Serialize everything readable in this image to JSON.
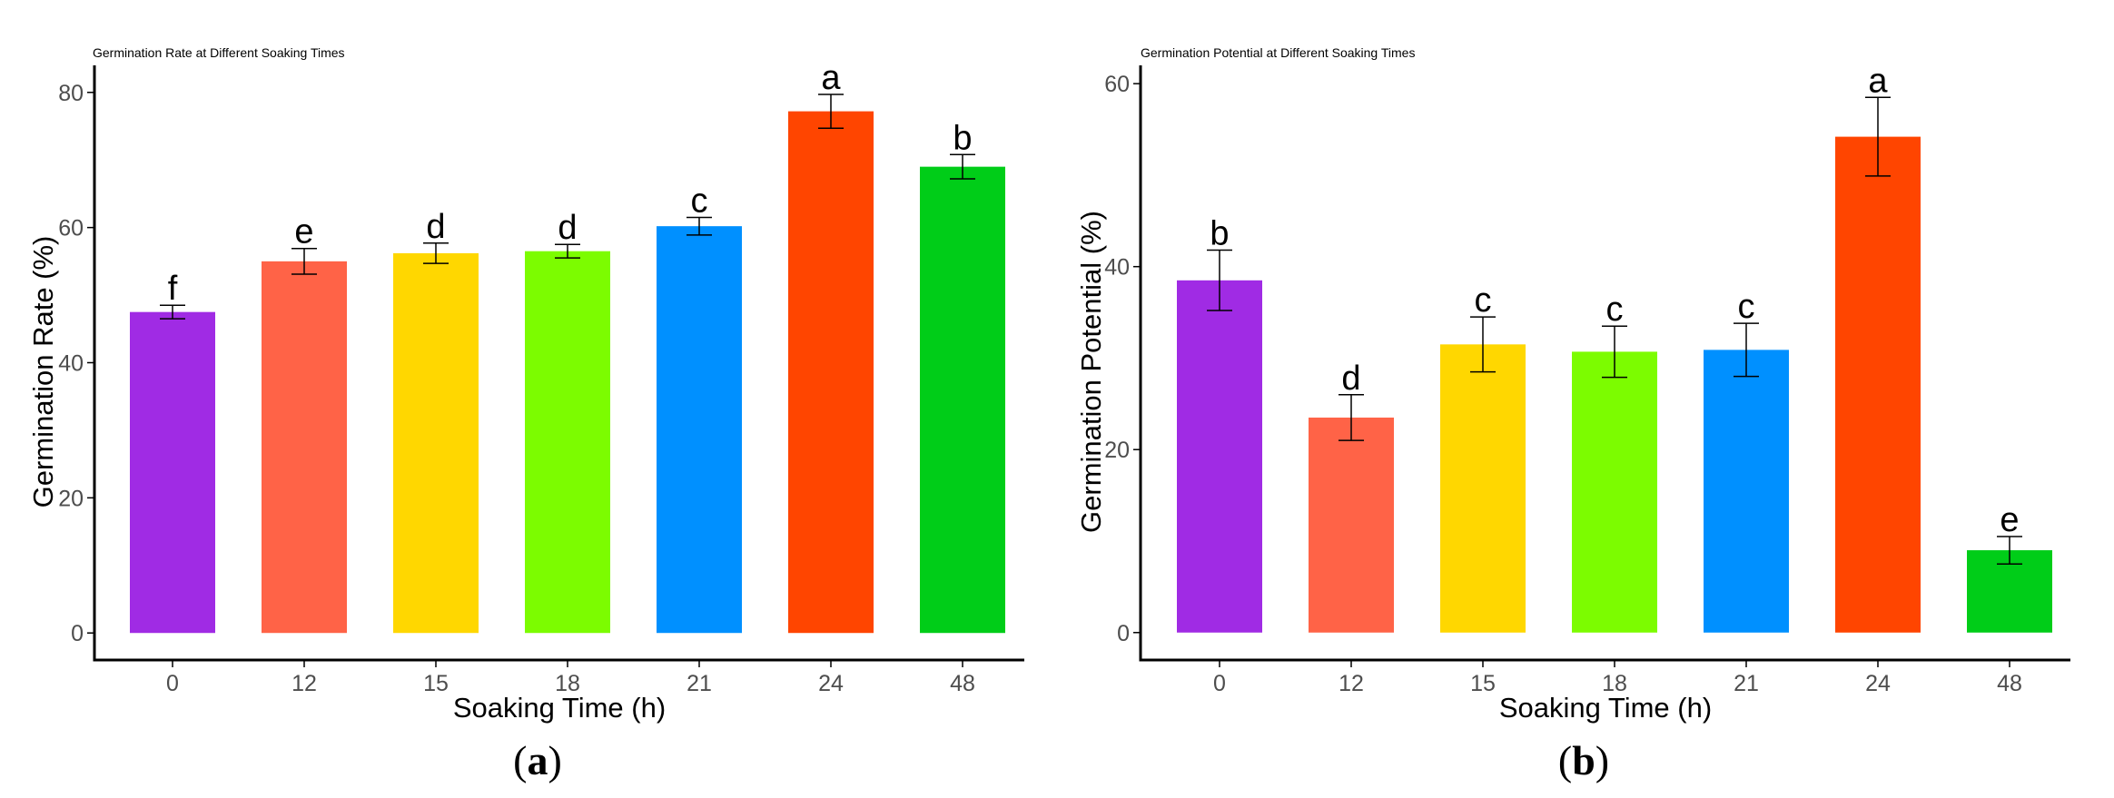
{
  "chart_data": [
    {
      "type": "bar",
      "panel_label": "(a)",
      "panel_letter": "a",
      "title": "Germination Rate at Different Soaking Times",
      "xlabel": "Soaking Time (h)",
      "ylabel": "Germination Rate (%)",
      "categories": [
        "0",
        "12",
        "15",
        "18",
        "21",
        "24",
        "48"
      ],
      "values": [
        47.5,
        55.0,
        56.2,
        56.5,
        60.2,
        77.2,
        69.0
      ],
      "errors": [
        1.0,
        1.9,
        1.5,
        1.0,
        1.3,
        2.5,
        1.8
      ],
      "letters": [
        "f",
        "e",
        "d",
        "d",
        "c",
        "a",
        "b"
      ],
      "colors": [
        "#a02be4",
        "#ff6347",
        "#ffd700",
        "#7cfc00",
        "#0090ff",
        "#ff4500",
        "#00cd18"
      ],
      "ylim": [
        -4,
        84
      ],
      "yticks": [
        0,
        20,
        40,
        60,
        80
      ],
      "grid": false
    },
    {
      "type": "bar",
      "panel_label": "(b)",
      "panel_letter": "b",
      "title": "Germination Potential at Different Soaking Times",
      "xlabel": "Soaking Time (h)",
      "ylabel": "Germination Potential (%)",
      "categories": [
        "0",
        "12",
        "15",
        "18",
        "21",
        "24",
        "48"
      ],
      "values": [
        38.5,
        23.5,
        31.5,
        30.7,
        30.9,
        54.2,
        9.0
      ],
      "errors": [
        3.3,
        2.5,
        3.0,
        2.8,
        2.9,
        4.3,
        1.5
      ],
      "letters": [
        "b",
        "d",
        "c",
        "c",
        "c",
        "a",
        "e"
      ],
      "colors": [
        "#a02be4",
        "#ff6347",
        "#ffd700",
        "#7cfc00",
        "#0090ff",
        "#ff4500",
        "#00cd18"
      ],
      "ylim": [
        -3,
        62
      ],
      "yticks": [
        0,
        20,
        40,
        60
      ],
      "grid": false
    }
  ]
}
